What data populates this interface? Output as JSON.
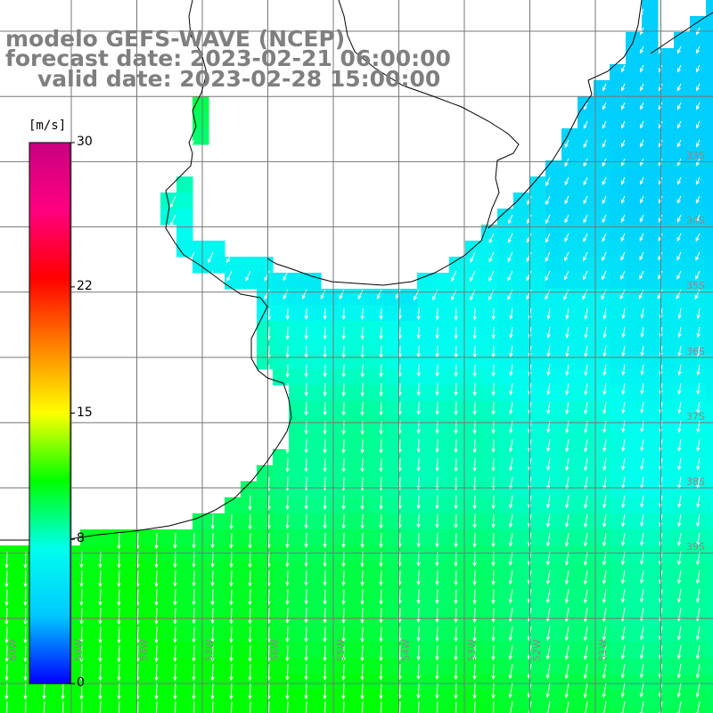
{
  "title": {
    "line1": "modelo GEFS-WAVE (NCEP)",
    "line2": "forecast date: 2023-02-21 06:00:00",
    "line3": "valid date: 2023-02-28 15:00:00"
  },
  "colorbar": {
    "unit": "[m/s]",
    "min": 0,
    "max": 30,
    "ticks": [
      {
        "value": 30,
        "label": "30"
      },
      {
        "value": 22,
        "label": "22"
      },
      {
        "value": 15,
        "label": "15"
      },
      {
        "value": 8,
        "label": "8"
      },
      {
        "value": 0,
        "label": "0"
      }
    ],
    "stops": [
      "#0000ff",
      "#00c8ff",
      "#00ffee",
      "#00ff00",
      "#ffff00",
      "#ff8000",
      "#ff0000",
      "#ff0080",
      "#c80080"
    ]
  },
  "field": {
    "variable": "wind speed",
    "description": "wind vectors over ocean, speeds ~5-11 m/s, flow toward south/southwest",
    "speed_range_mps": [
      5,
      11
    ]
  },
  "map": {
    "lon_labels": [
      "60W",
      "59W",
      "58W",
      "57W",
      "56W",
      "55W",
      "54W",
      "53W",
      "52W",
      "51W"
    ],
    "lat_labels": [
      "33S",
      "34S",
      "35S",
      "36S",
      "37S",
      "38S",
      "39S"
    ],
    "colors": {
      "land": "#ffffff",
      "coastline": "#000000",
      "grid": "#777777",
      "arrow": "#ffffff",
      "text": "#7f7f7f"
    }
  }
}
